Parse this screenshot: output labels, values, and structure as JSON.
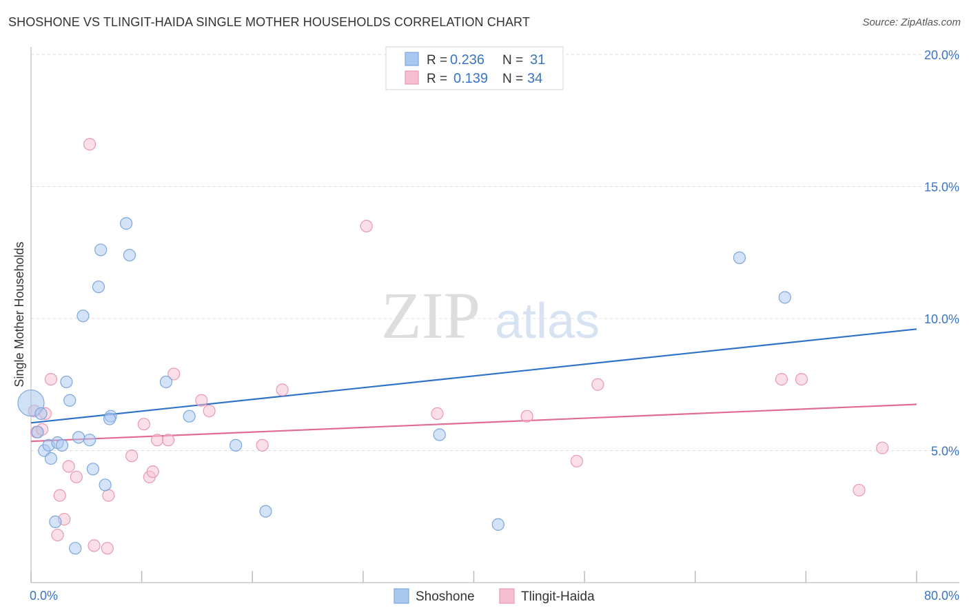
{
  "page": {
    "title": "SHOSHONE VS TLINGIT-HAIDA SINGLE MOTHER HOUSEHOLDS CORRELATION CHART",
    "source": "Source: ZipAtlas.com"
  },
  "watermark": {
    "zip": "ZIP",
    "atlas": "atlas"
  },
  "legend": {
    "r_label": "R =",
    "n_label": "N =",
    "items": [
      {
        "r": "0.236",
        "n": "31"
      },
      {
        "r": "0.139",
        "n": "34"
      }
    ]
  },
  "colors": {
    "shoshone_fill": "#aac8ef",
    "shoshone_stroke": "#7aa6dc",
    "shoshone_line": "#2f72c8",
    "tlingit_fill": "#f5bfd0",
    "tlingit_stroke": "#e898b3",
    "tlingit_line": "#e06c95",
    "tick_text": "#3a74c4",
    "grid": "#dddddd"
  },
  "chart_data": {
    "type": "scatter",
    "title": "SHOSHONE VS TLINGIT-HAIDA SINGLE MOTHER HOUSEHOLDS CORRELATION CHART",
    "xlabel": "",
    "ylabel": "Single Mother Households",
    "xlim": [
      0,
      80
    ],
    "ylim": [
      0,
      20
    ],
    "x_tick_labels": {
      "min": "0.0%",
      "max": "80.0%"
    },
    "y_ticks": [
      {
        "value": 5,
        "label": "5.0%"
      },
      {
        "value": 10,
        "label": "10.0%"
      },
      {
        "value": 15,
        "label": "15.0%"
      },
      {
        "value": 20,
        "label": "20.0%"
      }
    ],
    "legend_position": "top-center",
    "series": [
      {
        "name": "Shoshone",
        "R": 0.236,
        "N": 31,
        "trend": {
          "x0": 0,
          "y0": 6.05,
          "x1": 80,
          "y1": 9.6
        },
        "points": [
          {
            "x": 0.0,
            "y": 6.8,
            "big": true
          },
          {
            "x": 0.6,
            "y": 5.7
          },
          {
            "x": 0.9,
            "y": 6.4
          },
          {
            "x": 1.2,
            "y": 5.0
          },
          {
            "x": 1.6,
            "y": 5.2
          },
          {
            "x": 1.8,
            "y": 4.7
          },
          {
            "x": 2.2,
            "y": 2.3
          },
          {
            "x": 2.4,
            "y": 5.3
          },
          {
            "x": 2.8,
            "y": 5.2
          },
          {
            "x": 3.2,
            "y": 7.6
          },
          {
            "x": 3.5,
            "y": 6.9
          },
          {
            "x": 4.0,
            "y": 1.3
          },
          {
            "x": 4.3,
            "y": 5.5
          },
          {
            "x": 4.7,
            "y": 10.1
          },
          {
            "x": 5.3,
            "y": 5.4
          },
          {
            "x": 5.6,
            "y": 4.3
          },
          {
            "x": 6.1,
            "y": 11.2
          },
          {
            "x": 6.3,
            "y": 12.6
          },
          {
            "x": 6.7,
            "y": 3.7
          },
          {
            "x": 7.2,
            "y": 6.3
          },
          {
            "x": 8.6,
            "y": 13.6
          },
          {
            "x": 8.9,
            "y": 12.4
          },
          {
            "x": 12.2,
            "y": 7.6
          },
          {
            "x": 14.3,
            "y": 6.3
          },
          {
            "x": 18.5,
            "y": 5.2
          },
          {
            "x": 21.2,
            "y": 2.7
          },
          {
            "x": 36.9,
            "y": 5.6
          },
          {
            "x": 42.2,
            "y": 2.2
          },
          {
            "x": 64.0,
            "y": 12.3
          },
          {
            "x": 68.1,
            "y": 10.8
          },
          {
            "x": 7.1,
            "y": 6.2
          }
        ]
      },
      {
        "name": "Tlingit-Haida",
        "R": 0.139,
        "N": 34,
        "trend": {
          "x0": 0,
          "y0": 5.35,
          "x1": 80,
          "y1": 6.75
        },
        "points": [
          {
            "x": 0.3,
            "y": 6.5
          },
          {
            "x": 0.5,
            "y": 5.7
          },
          {
            "x": 1.0,
            "y": 5.8
          },
          {
            "x": 1.3,
            "y": 6.4
          },
          {
            "x": 1.8,
            "y": 7.7
          },
          {
            "x": 2.4,
            "y": 1.8
          },
          {
            "x": 2.6,
            "y": 3.3
          },
          {
            "x": 3.0,
            "y": 2.4
          },
          {
            "x": 3.4,
            "y": 4.4
          },
          {
            "x": 4.1,
            "y": 4.0
          },
          {
            "x": 5.3,
            "y": 16.6
          },
          {
            "x": 5.7,
            "y": 1.4
          },
          {
            "x": 6.9,
            "y": 1.3
          },
          {
            "x": 7.0,
            "y": 3.3
          },
          {
            "x": 9.1,
            "y": 4.8
          },
          {
            "x": 10.2,
            "y": 6.0
          },
          {
            "x": 10.7,
            "y": 4.0
          },
          {
            "x": 11.0,
            "y": 4.2
          },
          {
            "x": 11.4,
            "y": 5.4
          },
          {
            "x": 12.4,
            "y": 5.4
          },
          {
            "x": 12.9,
            "y": 7.9
          },
          {
            "x": 15.4,
            "y": 6.9
          },
          {
            "x": 16.1,
            "y": 6.5
          },
          {
            "x": 20.9,
            "y": 5.2
          },
          {
            "x": 22.7,
            "y": 7.3
          },
          {
            "x": 30.3,
            "y": 13.5
          },
          {
            "x": 36.7,
            "y": 6.4
          },
          {
            "x": 44.8,
            "y": 6.3
          },
          {
            "x": 49.3,
            "y": 4.6
          },
          {
            "x": 51.2,
            "y": 7.5
          },
          {
            "x": 67.8,
            "y": 7.7
          },
          {
            "x": 69.6,
            "y": 7.7
          },
          {
            "x": 74.8,
            "y": 3.5
          },
          {
            "x": 76.9,
            "y": 5.1
          }
        ]
      }
    ]
  }
}
